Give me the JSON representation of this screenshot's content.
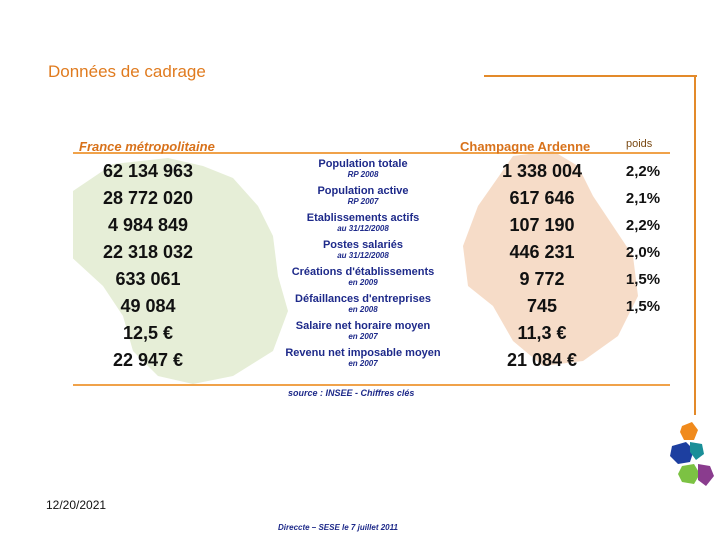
{
  "slide": {
    "title": "Données de cadrage",
    "date": "12/20/2021",
    "footer": "Direccte – SESE le 7 juillet 2011"
  },
  "table": {
    "header_france": "France métropolitaine",
    "header_champagne": "Champagne Ardenne",
    "header_weight": "poids",
    "rows": [
      {
        "france": "62 134 963",
        "indicator": "Population totale",
        "sub": "RP 2008",
        "champagne": "1 338 004",
        "weight": "2,2%"
      },
      {
        "france": "28 772 020",
        "indicator": "Population active",
        "sub": "RP 2007",
        "champagne": "617 646",
        "weight": "2,1%"
      },
      {
        "france": "4 984 849",
        "indicator": "Etablissements actifs",
        "sub": "au 31/12/2008",
        "champagne": "107 190",
        "weight": "2,2%"
      },
      {
        "france": "22 318 032",
        "indicator": "Postes salariés",
        "sub": "au 31/12/2008",
        "champagne": "446 231",
        "weight": "2,0%"
      },
      {
        "france": "633 061",
        "indicator": "Créations d'établissements",
        "sub": "en 2009",
        "champagne": "9 772",
        "weight": "1,5%"
      },
      {
        "france": "49 084",
        "indicator": "Défaillances d'entreprises",
        "sub": "en 2008",
        "champagne": "745",
        "weight": "1,5%"
      },
      {
        "france": "12,5 €",
        "indicator": "Salaire net horaire moyen",
        "sub": "en 2007",
        "champagne": "11,3 €",
        "weight": ""
      },
      {
        "france": "22 947 €",
        "indicator": "Revenu net imposable moyen",
        "sub": "en 2007",
        "champagne": "21 084 €",
        "weight": ""
      }
    ],
    "source": "source : INSEE - Chiffres clés"
  },
  "colors": {
    "accent_orange": "#e07b1f",
    "indicator_blue": "#1e2a8a",
    "map_france": "#e6eed7",
    "map_champagne": "#f6dcc8"
  }
}
